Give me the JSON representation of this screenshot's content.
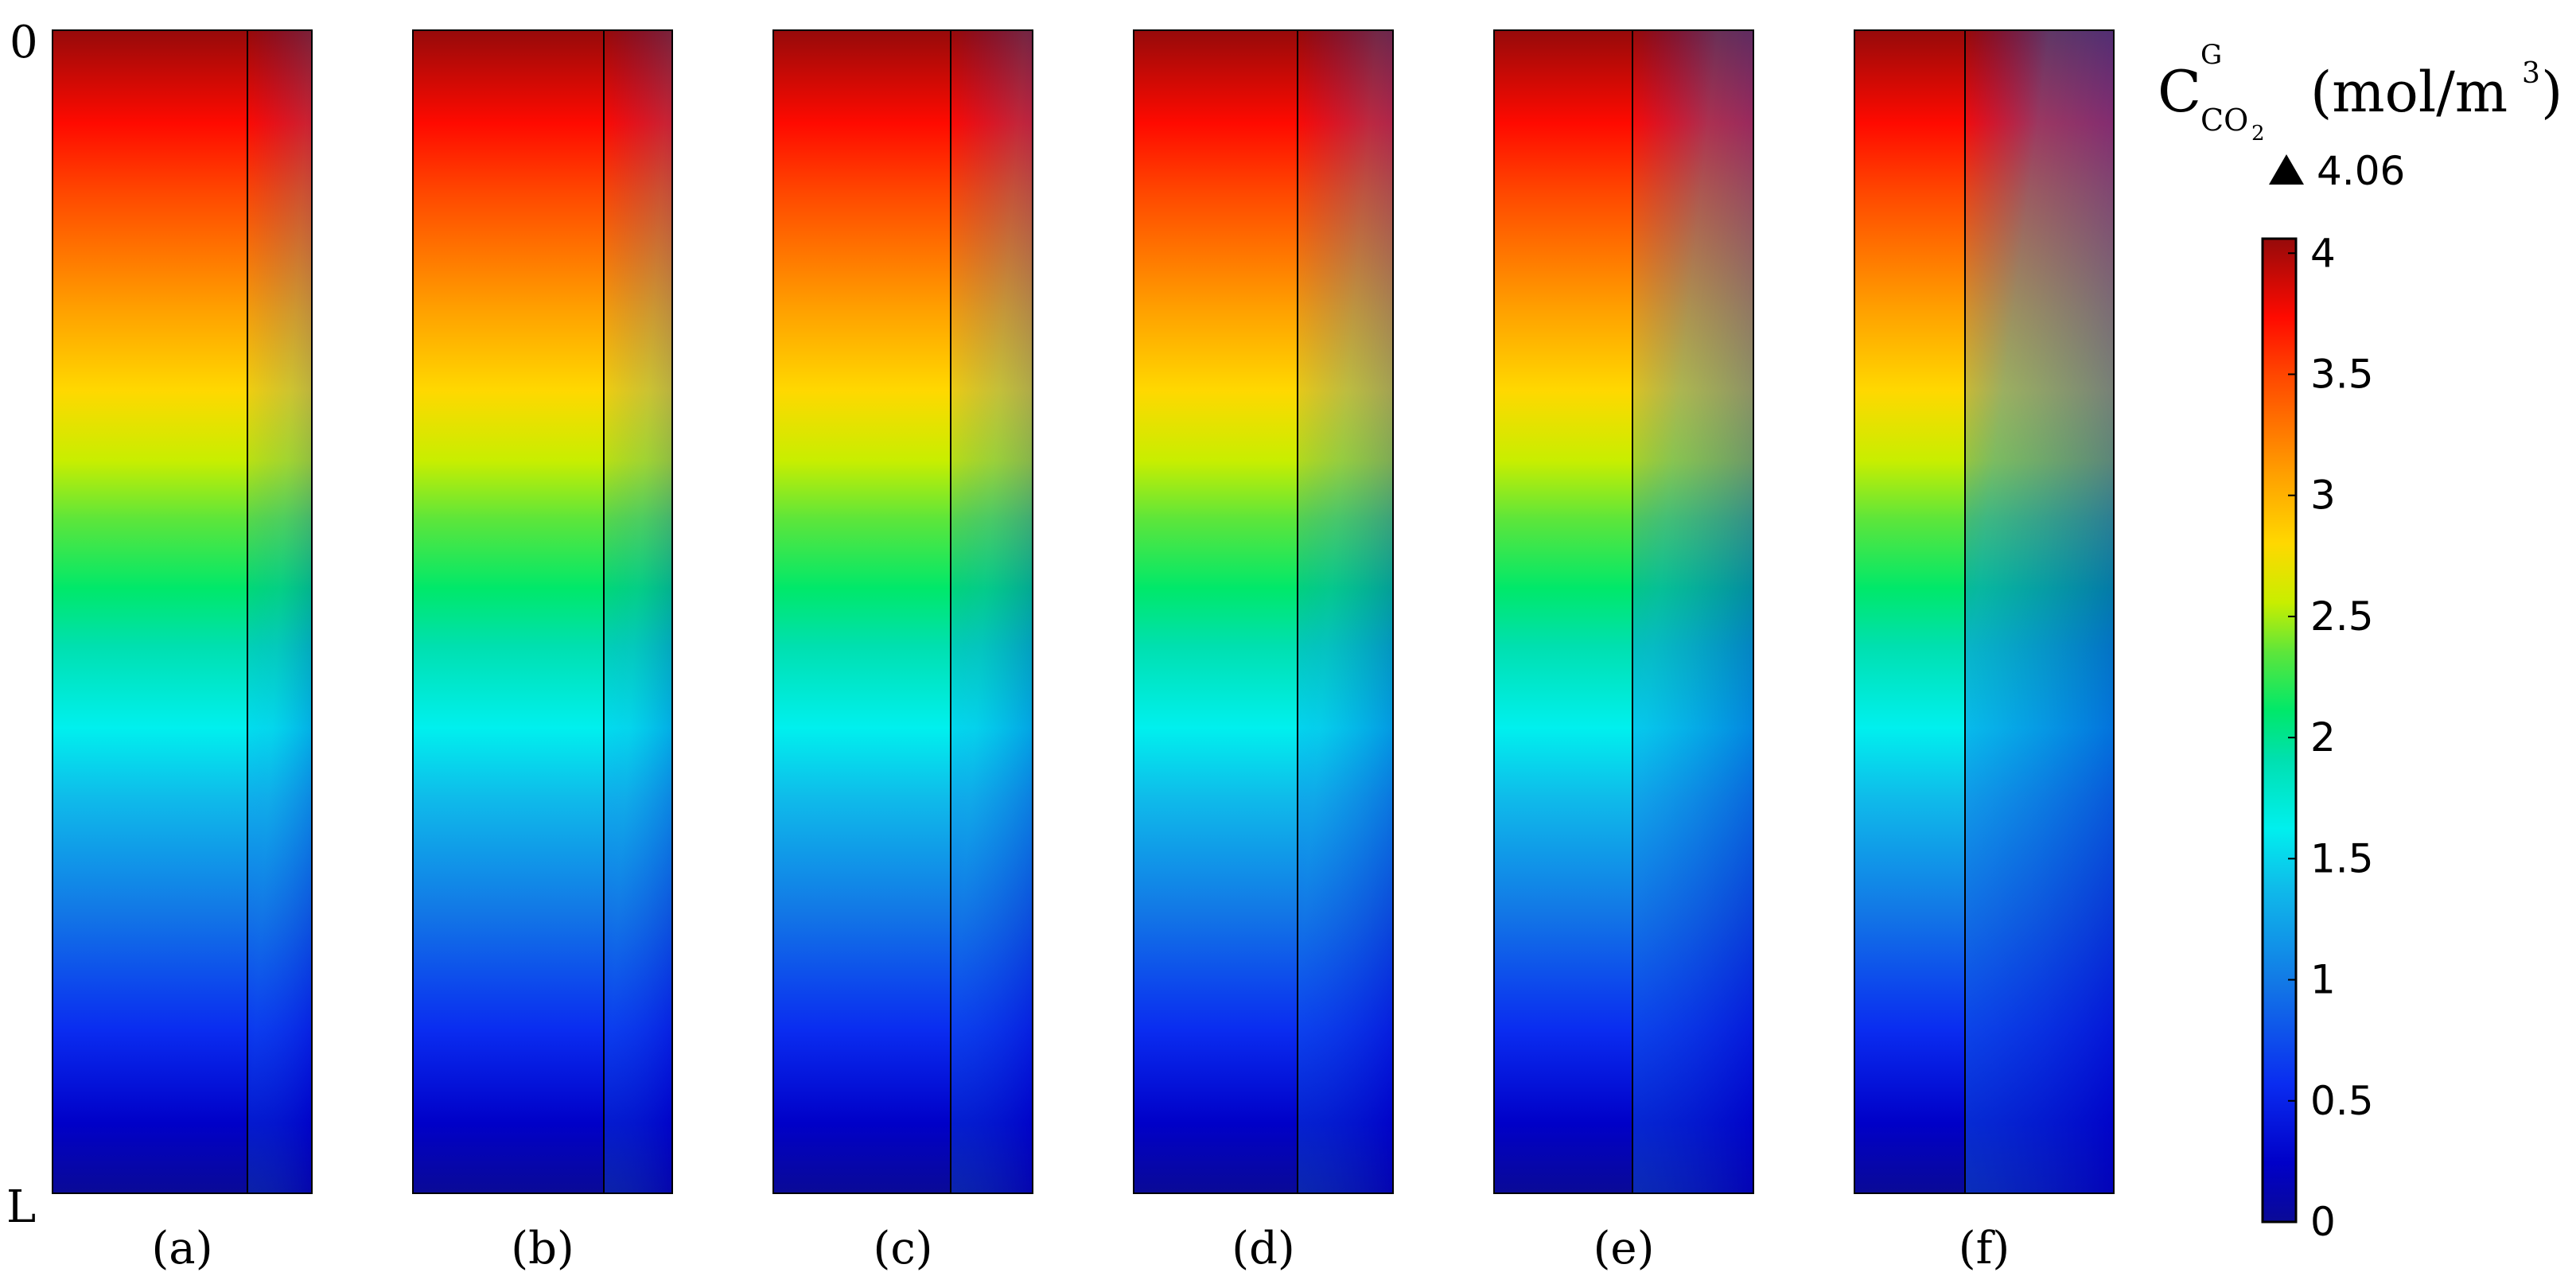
{
  "chart_data": {
    "type": "heatmap",
    "title": "",
    "quantity": {
      "symbol": "C",
      "superscript": "G",
      "subscript_main": "CO",
      "subscript_sub": "2",
      "unit_prefix": "(mol/m",
      "unit_exponent": "3",
      "unit_suffix": ")"
    },
    "max_marker": "4.06",
    "axis": {
      "top_label": "0",
      "bottom_label": "L"
    },
    "colorbar": {
      "range": [
        0,
        4.06
      ],
      "ticks": [
        {
          "value": 4,
          "label": "4"
        },
        {
          "value": 3.5,
          "label": "3.5"
        },
        {
          "value": 3,
          "label": "3"
        },
        {
          "value": 2.5,
          "label": "2.5"
        },
        {
          "value": 2,
          "label": "2"
        },
        {
          "value": 1.5,
          "label": "1.5"
        },
        {
          "value": 1,
          "label": "1"
        },
        {
          "value": 0.5,
          "label": "0.5"
        },
        {
          "value": 0,
          "label": "0"
        }
      ]
    },
    "panels": [
      {
        "label": "(a)",
        "membrane_fraction": 0.145
      },
      {
        "label": "(b)",
        "membrane_fraction": 0.165
      },
      {
        "label": "(c)",
        "membrane_fraction": 0.25
      },
      {
        "label": "(d)",
        "membrane_fraction": 0.335
      },
      {
        "label": "(e)",
        "membrane_fraction": 0.495
      },
      {
        "label": "(f)",
        "membrane_fraction": 0.665
      }
    ]
  }
}
